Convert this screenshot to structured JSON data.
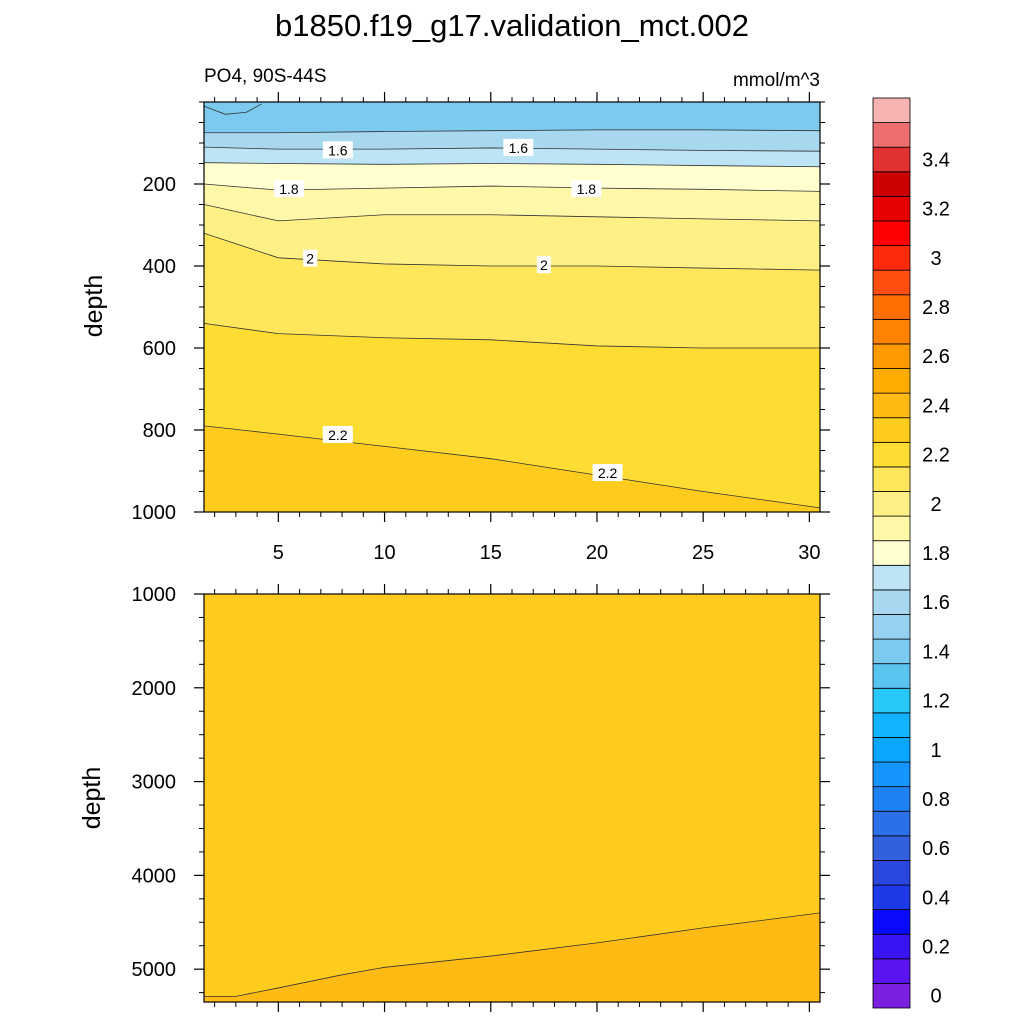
{
  "title": "b1850.f19_g17.validation_mct.002",
  "subtitle_left": "PO4, 90S-44S",
  "subtitle_right": "mmol/m^3",
  "chart_data": [
    {
      "type": "contour",
      "panel": "upper",
      "ylabel": "depth",
      "xlabel": "",
      "xlim": [
        1.5,
        30.5
      ],
      "ylim": [
        1000,
        0
      ],
      "x_ticks": [
        5,
        10,
        15,
        20,
        25,
        30
      ],
      "y_ticks": [
        200,
        400,
        600,
        800,
        1000
      ],
      "contour_lines": [
        {
          "level": 1.4,
          "points": [
            [
              1.5,
              10
            ],
            [
              2.5,
              30
            ],
            [
              3.5,
              25
            ],
            [
              4.2,
              5
            ]
          ]
        },
        {
          "level": 1.5,
          "points": [
            [
              1.5,
              75
            ],
            [
              5,
              75
            ],
            [
              10,
              72
            ],
            [
              15,
              70
            ],
            [
              20,
              68
            ],
            [
              25,
              68
            ],
            [
              30.5,
              70
            ]
          ]
        },
        {
          "level": 1.6,
          "points": [
            [
              1.5,
              110
            ],
            [
              5,
              115
            ],
            [
              10,
              115
            ],
            [
              15,
              112
            ],
            [
              20,
              115
            ],
            [
              25,
              118
            ],
            [
              30.5,
              120
            ]
          ]
        },
        {
          "level": 1.7,
          "points": [
            [
              1.5,
              148
            ],
            [
              5,
              150
            ],
            [
              10,
              152
            ],
            [
              15,
              150
            ],
            [
              20,
              152
            ],
            [
              25,
              155
            ],
            [
              30.5,
              158
            ]
          ]
        },
        {
          "level": 1.8,
          "points": [
            [
              1.5,
              200
            ],
            [
              5,
              215
            ],
            [
              10,
              210
            ],
            [
              15,
              205
            ],
            [
              20,
              210
            ],
            [
              25,
              213
            ],
            [
              30.5,
              218
            ]
          ]
        },
        {
          "level": 1.9,
          "points": [
            [
              1.5,
              250
            ],
            [
              5,
              290
            ],
            [
              10,
              275
            ],
            [
              15,
              275
            ],
            [
              20,
              280
            ],
            [
              25,
              285
            ],
            [
              30.5,
              290
            ]
          ]
        },
        {
          "level": 2.0,
          "points": [
            [
              1.5,
              320
            ],
            [
              5,
              380
            ],
            [
              10,
              395
            ],
            [
              15,
              400
            ],
            [
              20,
              400
            ],
            [
              25,
              405
            ],
            [
              30.5,
              410
            ]
          ]
        },
        {
          "level": 2.1,
          "points": [
            [
              1.5,
              540
            ],
            [
              5,
              565
            ],
            [
              10,
              575
            ],
            [
              15,
              580
            ],
            [
              20,
              595
            ],
            [
              25,
              600
            ],
            [
              30.5,
              600
            ]
          ]
        },
        {
          "level": 2.2,
          "points": [
            [
              1.5,
              790
            ],
            [
              5,
              810
            ],
            [
              10,
              840
            ],
            [
              15,
              870
            ],
            [
              20,
              910
            ],
            [
              25,
              950
            ],
            [
              30.5,
              990
            ]
          ]
        }
      ],
      "contour_labels": [
        {
          "text": "1.6",
          "x": 7.8,
          "y": 118
        },
        {
          "text": "1.6",
          "x": 16.3,
          "y": 112
        },
        {
          "text": "1.8",
          "x": 5.5,
          "y": 212
        },
        {
          "text": "1.8",
          "x": 19.5,
          "y": 212
        },
        {
          "text": "2",
          "x": 6.5,
          "y": 382
        },
        {
          "text": "2",
          "x": 17.5,
          "y": 398
        },
        {
          "text": "2.2",
          "x": 7.8,
          "y": 812
        },
        {
          "text": "2.2",
          "x": 20.5,
          "y": 905
        }
      ]
    },
    {
      "type": "contour",
      "panel": "lower",
      "ylabel": "depth",
      "xlabel": "",
      "xlim": [
        1.5,
        30.5
      ],
      "ylim": [
        5350,
        1000
      ],
      "x_ticks": [
        5,
        10,
        15,
        20,
        25,
        30
      ],
      "y_ticks": [
        1000,
        2000,
        3000,
        4000,
        5000
      ],
      "contour_lines": [
        {
          "level": 2.3,
          "points": [
            [
              1.5,
              5290
            ],
            [
              3,
              5290
            ],
            [
              5,
              5200
            ],
            [
              8,
              5060
            ],
            [
              10,
              4980
            ],
            [
              15,
              4860
            ],
            [
              20,
              4720
            ],
            [
              25,
              4560
            ],
            [
              30.5,
              4400
            ]
          ]
        }
      ]
    },
    {
      "type": "colorbar",
      "tick_labels": [
        "0",
        "0.2",
        "0.4",
        "0.6",
        "0.8",
        "1",
        "1.2",
        "1.4",
        "1.6",
        "1.8",
        "2",
        "2.2",
        "2.4",
        "2.6",
        "2.8",
        "3",
        "3.2",
        "3.4"
      ],
      "levels": [
        0,
        0.1,
        0.2,
        0.3,
        0.4,
        0.5,
        0.6,
        0.7,
        0.8,
        0.9,
        1.0,
        1.1,
        1.2,
        1.3,
        1.4,
        1.5,
        1.6,
        1.7,
        1.8,
        1.9,
        2.0,
        2.1,
        2.2,
        2.3,
        2.4,
        2.5,
        2.6,
        2.7,
        2.8,
        2.9,
        3.0,
        3.1,
        3.2,
        3.3,
        3.4
      ],
      "colors": [
        "#7b1fe0",
        "#5a14f0",
        "#3a14f5",
        "#0a0aff",
        "#1e3ae8",
        "#2a48e0",
        "#3360dc",
        "#2a70e8",
        "#1e82f5",
        "#1596ff",
        "#0aa5ff",
        "#12b4ff",
        "#28c8fa",
        "#5ac4f0",
        "#7ccaf0",
        "#96d2f0",
        "#a8d8f0",
        "#bde4f4",
        "#ffffcf",
        "#fff8a8",
        "#fff086",
        "#ffe65a",
        "#ffdc32",
        "#ffcc1e",
        "#ffba14",
        "#ffac00",
        "#ff9a00",
        "#ff8200",
        "#ff6e00",
        "#ff4e10",
        "#ff2a0a",
        "#ff0000",
        "#e60000",
        "#cc0000",
        "#e03232",
        "#ec6e6e",
        "#f7b2b2"
      ]
    }
  ]
}
